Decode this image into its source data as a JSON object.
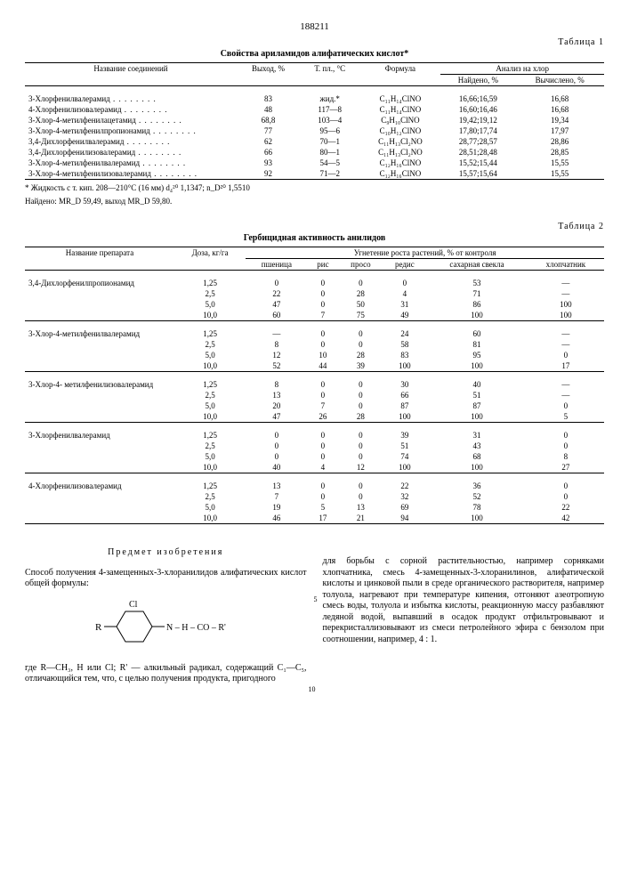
{
  "page_number": "188211",
  "table1": {
    "label": "Таблица 1",
    "title": "Свойства ариламидов алифатических кислот*",
    "headers": {
      "name": "Название соединений",
      "yield": "Выход, %",
      "mp": "Т. пл., °C",
      "formula": "Формула",
      "analysis": "Анализ на хлор",
      "found": "Найдено, %",
      "calc": "Вычис­лено, %"
    },
    "rows": [
      {
        "name": "3-Хлорфенилвалерамид",
        "yield": "83",
        "mp": "жид.*",
        "formula": "C₁₁H₁₄ClNO",
        "found": "16,66;16,59",
        "calc": "16,68"
      },
      {
        "name": "4-Хлорфенилизовалерамид",
        "yield": "48",
        "mp": "117—8",
        "formula": "C₁₁H₁₄ClNO",
        "found": "16,60;16,46",
        "calc": "16,68"
      },
      {
        "name": "3-Хлор-4-метилфенилацетамид",
        "yield": "68,8",
        "mp": "103—4",
        "formula": "C₉H₁₀ClNO",
        "found": "19,42;19,12",
        "calc": "19,34"
      },
      {
        "name": "3-Хлор-4-метилфенилпропионамид",
        "yield": "77",
        "mp": "95—6",
        "formula": "C₁₀H₁₂ClNO",
        "found": "17,80;17,74",
        "calc": "17,97"
      },
      {
        "name": "3,4-Дихлорфенилвалерамид",
        "yield": "62",
        "mp": "70—1",
        "formula": "C₁₁H₁₃Cl₂NO",
        "found": "28,77;28,57",
        "calc": "28,86"
      },
      {
        "name": "3,4-Дихлорфенилизовалерамид",
        "yield": "66",
        "mp": "80—1",
        "formula": "C₁₁H₁₃Cl₂NO",
        "found": "28,51;28,48",
        "calc": "28,85"
      },
      {
        "name": "3-Хлор-4-метилфенилвалерамид",
        "yield": "93",
        "mp": "54—5",
        "formula": "C₁₂H₁₆ClNO",
        "found": "15,52;15,44",
        "calc": "15,55"
      },
      {
        "name": "3-Хлор-4-метилфенилизовалерамид",
        "yield": "92",
        "mp": "71—2",
        "formula": "C₁₂H₁₆ClNO",
        "found": "15,57;15,64",
        "calc": "15,55"
      }
    ],
    "footnote1": "* Жидкость с т. кип. 208—210°C (16 мм)  d₄²⁰ 1,1347;  n_D²⁰ 1,5510",
    "footnote2": "Найдено: MR_D  59,49,  выход MR_D  59,80."
  },
  "table2": {
    "label": "Таблица 2",
    "title": "Гербицидная активность анилидов",
    "headers": {
      "name": "Название препарата",
      "dose": "Доза, кг/га",
      "group": "Угнетение роста растений, % от контроля",
      "wheat": "пшеница",
      "rice": "рис",
      "millet": "просо",
      "radish": "редис",
      "beet": "сахар­ная свекла",
      "cotton": "хлопчат­ник"
    },
    "groups": [
      {
        "name": "3,4-Дихлорфенилпропионамид",
        "rows": [
          {
            "d": "1,25",
            "v": [
              "0",
              "0",
              "0",
              "0",
              "53",
              "—"
            ]
          },
          {
            "d": "2,5",
            "v": [
              "22",
              "0",
              "28",
              "4",
              "71",
              "—"
            ]
          },
          {
            "d": "5,0",
            "v": [
              "47",
              "0",
              "50",
              "31",
              "86",
              "100"
            ]
          },
          {
            "d": "10,0",
            "v": [
              "60",
              "7",
              "75",
              "49",
              "100",
              "100"
            ]
          }
        ]
      },
      {
        "name": "3-Хлор-4-метилфенилвалерамид",
        "rows": [
          {
            "d": "1,25",
            "v": [
              "—",
              "0",
              "0",
              "24",
              "60",
              "—"
            ]
          },
          {
            "d": "2,5",
            "v": [
              "8",
              "0",
              "0",
              "58",
              "81",
              "—"
            ]
          },
          {
            "d": "5,0",
            "v": [
              "12",
              "10",
              "28",
              "83",
              "95",
              "0"
            ]
          },
          {
            "d": "10,0",
            "v": [
              "52",
              "44",
              "39",
              "100",
              "100",
              "17"
            ]
          }
        ]
      },
      {
        "name": "3-Хлор-4- метилфенилизовалерамид",
        "rows": [
          {
            "d": "1,25",
            "v": [
              "8",
              "0",
              "0",
              "30",
              "40",
              "—"
            ]
          },
          {
            "d": "2,5",
            "v": [
              "13",
              "0",
              "0",
              "66",
              "51",
              "—"
            ]
          },
          {
            "d": "5,0",
            "v": [
              "20",
              "7",
              "0",
              "87",
              "87",
              "0"
            ]
          },
          {
            "d": "10,0",
            "v": [
              "47",
              "26",
              "28",
              "100",
              "100",
              "5"
            ]
          }
        ]
      },
      {
        "name": "3-Хлорфенилвалерамид",
        "rows": [
          {
            "d": "1,25",
            "v": [
              "0",
              "0",
              "0",
              "39",
              "31",
              "0"
            ]
          },
          {
            "d": "2,5",
            "v": [
              "0",
              "0",
              "0",
              "51",
              "43",
              "0"
            ]
          },
          {
            "d": "5,0",
            "v": [
              "0",
              "0",
              "0",
              "74",
              "68",
              "8"
            ]
          },
          {
            "d": "10,0",
            "v": [
              "40",
              "4",
              "12",
              "100",
              "100",
              "27"
            ]
          }
        ]
      },
      {
        "name": "4-Хлорфенилизовалерамид",
        "rows": [
          {
            "d": "1,25",
            "v": [
              "13",
              "0",
              "0",
              "22",
              "36",
              "0"
            ]
          },
          {
            "d": "2,5",
            "v": [
              "7",
              "0",
              "0",
              "32",
              "52",
              "0"
            ]
          },
          {
            "d": "5,0",
            "v": [
              "19",
              "5",
              "13",
              "69",
              "78",
              "22"
            ]
          },
          {
            "d": "10,0",
            "v": [
              "46",
              "17",
              "21",
              "94",
              "100",
              "42"
            ]
          }
        ]
      }
    ]
  },
  "text": {
    "subject": "Предмет изобретения",
    "left_p1": "Способ получения 4-замещенных-3-хлорани­лидов алифатических кислот общей формулы:",
    "left_p2": "где R—CH₃, H или Cl; R' — алкильный ради­кал, содержащий C₁—C₅, отличающийся тем, что, с целью получения продукта, пригодного",
    "right": "для борьбы с сорной растительностью, напри­мер сорняками хлопчатника, смесь 4-замещен­ных-3-хлоранилинов, алифатической кислоты и цинковой пыли в среде органического раст­ворителя, например толуола, нагревают при температуре кипения, отгоняют азеотропную смесь воды, толуола и избытка кислоты, реак­ционную массу разбавляют ледяной водой, выпавший в осадок продукт отфильтровыва­ют и перекристаллизовывают из смеси петро­лейного эфира с бензолом при соотношении, например, 4 : 1.",
    "ln5": "5",
    "ln10": "10"
  },
  "formula_labels": {
    "R": "R",
    "Cl": "Cl",
    "NH": "N – H – CO – R'"
  }
}
